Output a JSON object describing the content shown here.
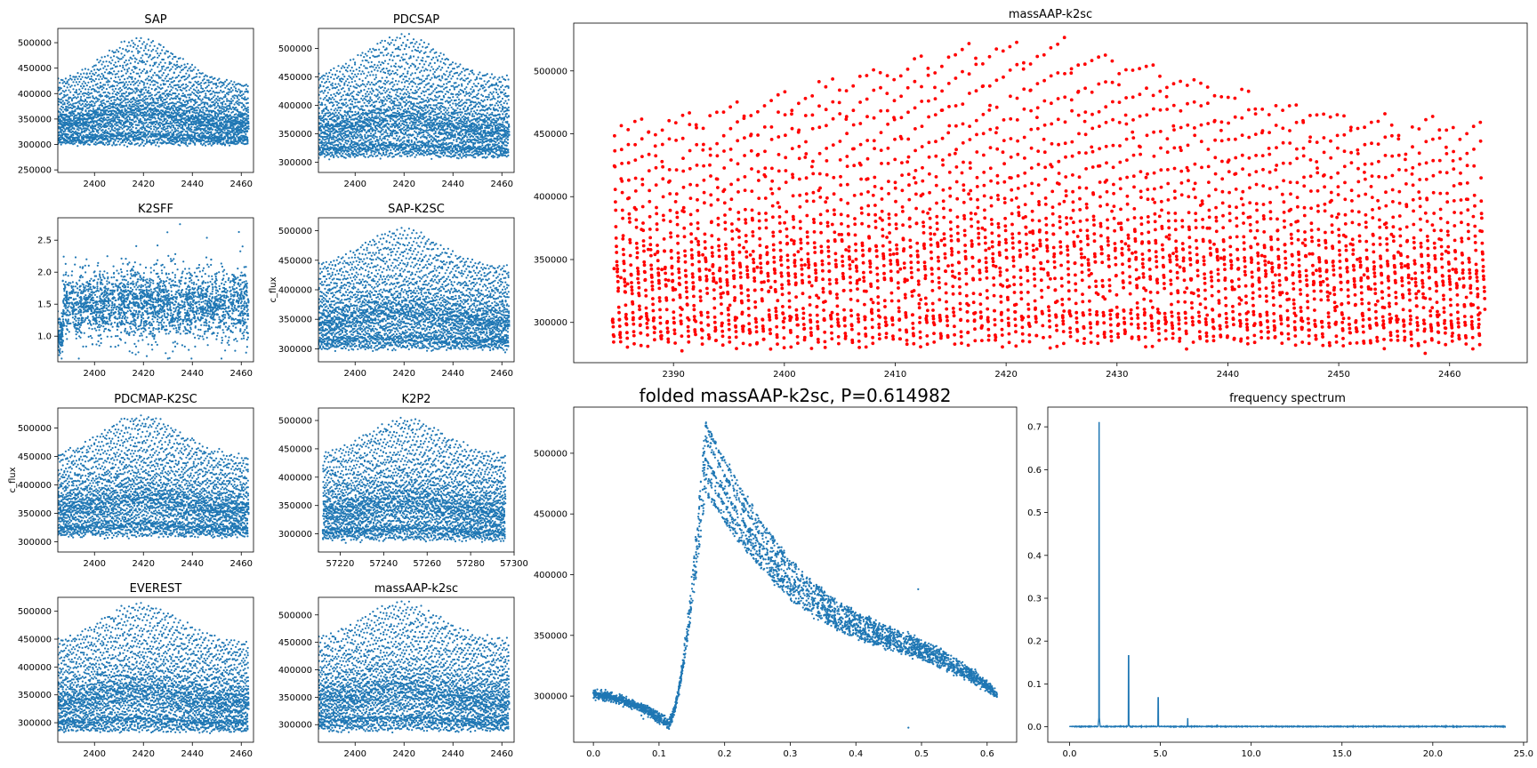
{
  "colors": {
    "series": "#1f77b4",
    "highlight": "#ff0000",
    "axis": "#000000",
    "background": "#ffffff"
  },
  "chart_data": [
    {
      "id": "sap",
      "type": "scatter",
      "title": "SAP",
      "xlabel": "",
      "ylabel": "",
      "xlim": [
        2385,
        2465
      ],
      "ylim": [
        245000,
        528000
      ],
      "xticks": [
        2400,
        2420,
        2440,
        2460
      ],
      "yticks": [
        250000,
        300000,
        350000,
        400000,
        450000,
        500000
      ],
      "series": [
        {
          "color": "#1f77b4",
          "x_range": [
            2385,
            2463
          ],
          "baseline": 300000,
          "amplitude": [
            120000,
            210000
          ],
          "envelope_peak": {
            "x": 2419,
            "y": 515000
          },
          "envelope_edges": [
            460000,
            495000
          ]
        }
      ]
    },
    {
      "id": "pdcsap",
      "type": "scatter",
      "title": "PDCSAP",
      "xlabel": "",
      "ylabel": "",
      "xlim": [
        2385,
        2465
      ],
      "ylim": [
        282000,
        535000
      ],
      "xticks": [
        2400,
        2420,
        2440,
        2460
      ],
      "yticks": [
        300000,
        350000,
        400000,
        450000,
        500000
      ],
      "series": [
        {
          "color": "#1f77b4",
          "x_range": [
            2385,
            2463
          ],
          "baseline": 310000,
          "amplitude": [
            140000,
            215000
          ],
          "envelope_peak": {
            "x": 2419,
            "y": 528000
          },
          "envelope_edges": [
            468000,
            502000
          ]
        }
      ]
    },
    {
      "id": "k2sff",
      "type": "scatter",
      "title": "K2SFF",
      "xlabel": "",
      "ylabel": "",
      "xlim": [
        2385,
        2465
      ],
      "ylim": [
        0.6,
        2.85
      ],
      "xticks": [
        2400,
        2420,
        2440,
        2460
      ],
      "yticks": [
        1.0,
        1.5,
        2.0,
        2.5
      ],
      "series": [
        {
          "color": "#1f77b4",
          "x_range": [
            2385,
            2463
          ],
          "mean": 1.5,
          "spread": 0.25,
          "range": [
            0.65,
            2.75
          ]
        }
      ]
    },
    {
      "id": "sap-k2sc",
      "type": "scatter",
      "title": "SAP-K2SC",
      "xlabel": "",
      "ylabel": "c_flux",
      "xlim": [
        2385,
        2465
      ],
      "ylim": [
        278000,
        522000
      ],
      "xticks": [
        2400,
        2420,
        2440,
        2460
      ],
      "yticks": [
        300000,
        350000,
        400000,
        450000,
        500000
      ],
      "series": [
        {
          "color": "#1f77b4",
          "x_range": [
            2385,
            2463
          ],
          "baseline": 300000,
          "amplitude": [
            140000,
            205000
          ],
          "envelope_peak": {
            "x": 2419,
            "y": 515000
          },
          "envelope_edges": [
            455000,
            495000
          ]
        }
      ]
    },
    {
      "id": "pdcmap-k2sc",
      "type": "scatter",
      "title": "PDCMAP-K2SC",
      "xlabel": "",
      "ylabel": "c_flux",
      "xlim": [
        2385,
        2465
      ],
      "ylim": [
        282000,
        535000
      ],
      "xticks": [
        2400,
        2420,
        2440,
        2460
      ],
      "yticks": [
        300000,
        350000,
        400000,
        450000,
        500000
      ],
      "series": [
        {
          "color": "#1f77b4",
          "x_range": [
            2385,
            2463
          ],
          "baseline": 310000,
          "amplitude": [
            140000,
            215000
          ],
          "envelope_peak": {
            "x": 2419,
            "y": 528000
          },
          "envelope_edges": [
            468000,
            502000
          ]
        }
      ]
    },
    {
      "id": "k2p2",
      "type": "scatter",
      "title": "K2P2",
      "xlabel": "",
      "ylabel": "",
      "xlim": [
        57210,
        57300
      ],
      "ylim": [
        268000,
        522000
      ],
      "xticks": [
        57220,
        57240,
        57260,
        57280,
        57300
      ],
      "yticks": [
        300000,
        350000,
        400000,
        450000,
        500000
      ],
      "series": [
        {
          "color": "#1f77b4",
          "x_range": [
            57212,
            57296
          ],
          "baseline": 290000,
          "amplitude": [
            150000,
            215000
          ],
          "envelope_peak": {
            "x": 57250,
            "y": 510000
          },
          "envelope_edges": [
            455000,
            485000
          ]
        }
      ]
    },
    {
      "id": "everest",
      "type": "scatter",
      "title": "EVEREST",
      "xlabel": "",
      "ylabel": "",
      "xlim": [
        2385,
        2465
      ],
      "ylim": [
        265000,
        525000
      ],
      "xticks": [
        2400,
        2420,
        2440,
        2460
      ],
      "yticks": [
        300000,
        350000,
        400000,
        450000,
        500000
      ],
      "series": [
        {
          "color": "#1f77b4",
          "x_range": [
            2385,
            2463
          ],
          "baseline": 285000,
          "amplitude": [
            160000,
            230000
          ],
          "envelope_peak": {
            "x": 2419,
            "y": 515000
          },
          "envelope_edges": [
            455000,
            490000
          ]
        }
      ]
    },
    {
      "id": "massaap-k2sc-small",
      "type": "scatter",
      "title": "massAAP-k2sc",
      "xlabel": "",
      "ylabel": "",
      "xlim": [
        2385,
        2465
      ],
      "ylim": [
        268000,
        532000
      ],
      "xticks": [
        2400,
        2420,
        2440,
        2460
      ],
      "yticks": [
        300000,
        350000,
        400000,
        450000,
        500000
      ],
      "series": [
        {
          "color": "#1f77b4",
          "x_range": [
            2385,
            2463
          ],
          "baseline": 290000,
          "amplitude": [
            165000,
            235000
          ],
          "envelope_peak": {
            "x": 2419,
            "y": 525000
          },
          "envelope_edges": [
            460000,
            495000
          ]
        }
      ]
    },
    {
      "id": "massaap-k2sc",
      "type": "scatter",
      "title": "massAAP-k2sc",
      "xlabel": "",
      "ylabel": "",
      "xlim": [
        2381,
        2467
      ],
      "ylim": [
        268000,
        538000
      ],
      "xticks": [
        2390,
        2400,
        2410,
        2420,
        2430,
        2440,
        2450,
        2460
      ],
      "yticks": [
        300000,
        350000,
        400000,
        450000,
        500000
      ],
      "series": [
        {
          "color": "#ff0000",
          "cadence_days": 0.0204,
          "x_range": [
            2384.5,
            2463.2
          ],
          "baseline": 282000,
          "amplitude": [
            175000,
            242000
          ],
          "envelope_peak": {
            "x": 2421,
            "y": 527000
          },
          "envelope_edges": [
            463000,
            495000
          ]
        }
      ]
    },
    {
      "id": "folded",
      "type": "scatter",
      "title": "folded massAAP-k2sc, P=0.614982",
      "xlabel": "",
      "ylabel": "",
      "xlim": [
        -0.03,
        0.645
      ],
      "ylim": [
        262000,
        538000
      ],
      "xticks": [
        0.0,
        0.1,
        0.2,
        0.3,
        0.4,
        0.5,
        0.6
      ],
      "yticks": [
        300000,
        350000,
        400000,
        450000,
        500000
      ],
      "series": [
        {
          "color": "#1f77b4",
          "phase_range": [
            0.0,
            0.615
          ],
          "minimum": {
            "x": 0.115,
            "y": 276000
          },
          "maximum": {
            "x": 0.222,
            "y": 525000
          },
          "start_level": 306000,
          "end_level": 305000,
          "outliers": [
            {
              "x": 0.48,
              "y": 274000
            },
            {
              "x": 0.495,
              "y": 388000
            },
            {
              "x": 0.535,
              "y": 336000
            }
          ]
        }
      ]
    },
    {
      "id": "frequency",
      "type": "line",
      "title": "frequency spectrum",
      "xlabel": "",
      "ylabel": "",
      "xlim": [
        -1.2,
        25.2
      ],
      "ylim": [
        -0.036,
        0.746
      ],
      "xticks": [
        0,
        5,
        10,
        15,
        20,
        25
      ],
      "yticks": [
        0.0,
        0.1,
        0.2,
        0.3,
        0.4,
        0.5,
        0.6,
        0.7
      ],
      "series": [
        {
          "color": "#1f77b4",
          "x_range": [
            0,
            24
          ],
          "peaks": [
            {
              "x": 1.626,
              "y": 0.71
            },
            {
              "x": 3.252,
              "y": 0.166
            },
            {
              "x": 4.878,
              "y": 0.068
            },
            {
              "x": 6.504,
              "y": 0.019
            },
            {
              "x": 8.13,
              "y": 0.004
            }
          ]
        }
      ]
    }
  ]
}
